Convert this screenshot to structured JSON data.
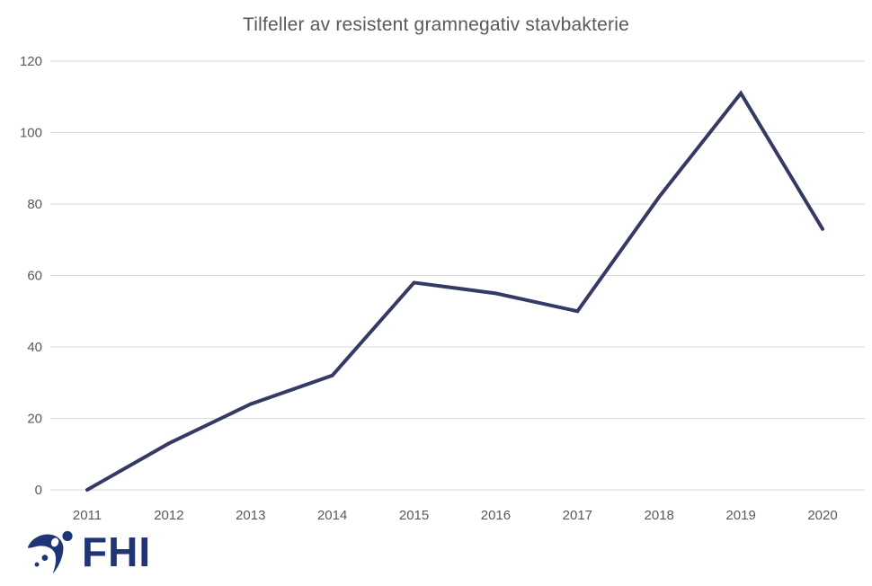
{
  "title": "Tilfeller av resistent gramnegativ stavbakterie",
  "logo": {
    "text": "FHI"
  },
  "colors": {
    "line": "#343a64",
    "grid": "#d9d9d9",
    "axis_text": "#595959",
    "title_text": "#595959",
    "logo": "#1f3575",
    "background": "#ffffff"
  },
  "chart_data": {
    "type": "line",
    "title": "Tilfeller av resistent gramnegativ stavbakterie",
    "categories": [
      "2011",
      "2012",
      "2013",
      "2014",
      "2015",
      "2016",
      "2017",
      "2018",
      "2019",
      "2020"
    ],
    "values": [
      0,
      13,
      24,
      32,
      58,
      55,
      50,
      82,
      111,
      73
    ],
    "series_name": "Tilfeller",
    "xlabel": "",
    "ylabel": "",
    "ylim": [
      0,
      120
    ],
    "yticks": [
      0,
      20,
      40,
      60,
      80,
      100,
      120
    ],
    "grid": true,
    "legend": "none"
  }
}
